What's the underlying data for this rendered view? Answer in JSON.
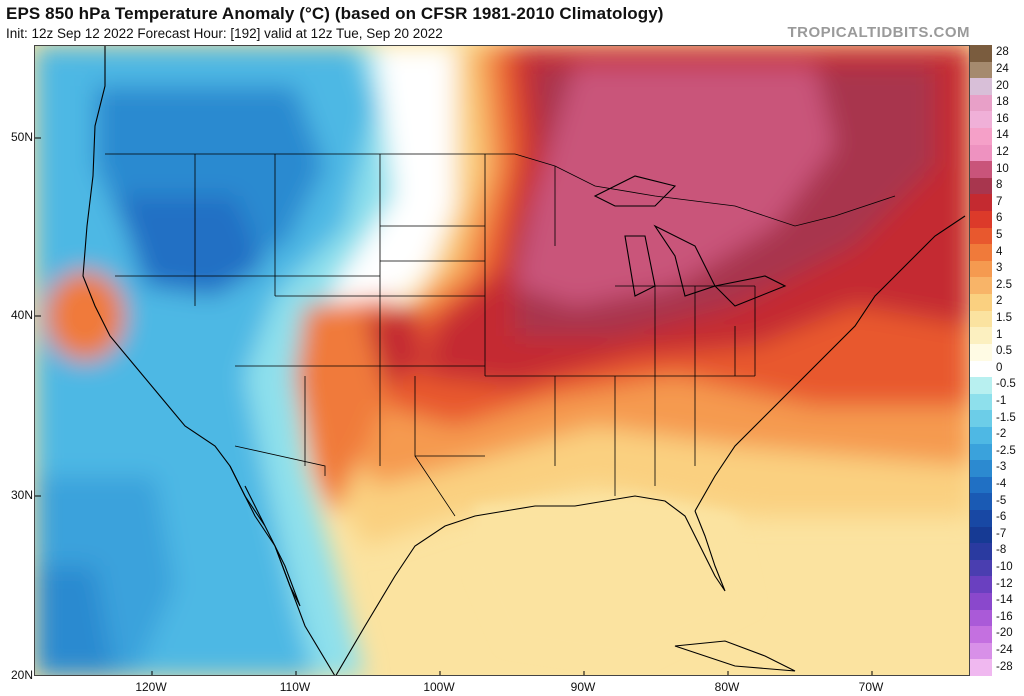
{
  "header": {
    "title": "EPS 850 hPa Temperature Anomaly (°C) (based on CFSR 1981-2010 Climatology)",
    "subtitle": "Init: 12z Sep 12 2022   Forecast Hour: [192]   valid at 12z Tue, Sep 20 2022",
    "credit": "TROPICALTIDBITS.COM"
  },
  "axes": {
    "lat_labels": [
      "50N",
      "40N",
      "30N",
      "20N"
    ],
    "lon_labels": [
      "120W",
      "110W",
      "100W",
      "90W",
      "80W",
      "70W"
    ]
  },
  "colorbar": {
    "labels": [
      "28",
      "24",
      "20",
      "18",
      "16",
      "14",
      "12",
      "10",
      "8",
      "7",
      "6",
      "5",
      "4",
      "3",
      "2.5",
      "2",
      "1.5",
      "1",
      "0.5",
      "0",
      "-0.5",
      "-1",
      "-1.5",
      "-2",
      "-2.5",
      "-3",
      "-4",
      "-5",
      "-6",
      "-7",
      "-8",
      "-10",
      "-12",
      "-14",
      "-16",
      "-20",
      "-24",
      "-28"
    ],
    "colors": [
      "#7a5c3e",
      "#a58a6e",
      "#d8bfd8",
      "#e8a0c8",
      "#f0b0d8",
      "#f5a0c8",
      "#ee92c0",
      "#c9547a",
      "#a8364e",
      "#c42a30",
      "#dc3a2a",
      "#e8582e",
      "#f07a3a",
      "#f59a50",
      "#f8b468",
      "#fad080",
      "#fbe3a0",
      "#fcf0c0",
      "#fffbe4",
      "#ffffff",
      "#b8f0f0",
      "#8ee0ec",
      "#6ccde8",
      "#4eb8e4",
      "#3aa2dc",
      "#2c8ad0",
      "#2070c4",
      "#1a5ab4",
      "#1848a4",
      "#163a94",
      "#2a3aa0",
      "#4a3eb0",
      "#6a40c0",
      "#8a48cc",
      "#aa5ad8",
      "#c470e0",
      "#d890e8",
      "#f0b8f0"
    ]
  }
}
